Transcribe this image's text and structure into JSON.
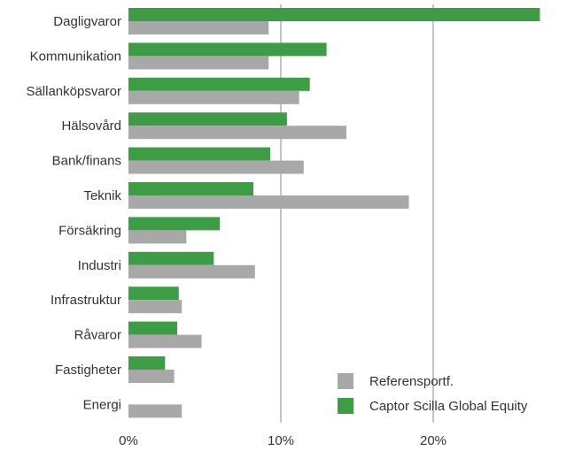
{
  "chart_data": {
    "type": "bar",
    "orientation": "horizontal",
    "categories": [
      "Dagligvaror",
      "Kommunikation",
      "Sällanköpsvaror",
      "Hälsovård",
      "Bank/finans",
      "Teknik",
      "Försäkring",
      "Industri",
      "Infrastruktur",
      "Råvaror",
      "Fastigheter",
      "Energi"
    ],
    "series": [
      {
        "name": "Captor Scilla Global Equity",
        "color": "#3d9c45",
        "values": [
          27.0,
          13.0,
          11.9,
          10.4,
          9.3,
          8.2,
          6.0,
          5.6,
          3.3,
          3.2,
          2.4,
          0.0
        ]
      },
      {
        "name": "Referensportf.",
        "color": "#a8a8a8",
        "values": [
          9.2,
          9.2,
          11.2,
          14.3,
          11.5,
          18.4,
          3.8,
          8.3,
          3.5,
          4.8,
          3.0,
          3.5
        ]
      }
    ],
    "xlim": [
      0,
      27
    ],
    "xticks": [
      "0%",
      "10%",
      "20%"
    ],
    "xtick_values": [
      0,
      10,
      20
    ],
    "grid": "vertical",
    "legend": {
      "placement": "bottom-right",
      "entries": [
        "Referensportf.",
        "Captor Scilla Global Equity"
      ]
    }
  }
}
